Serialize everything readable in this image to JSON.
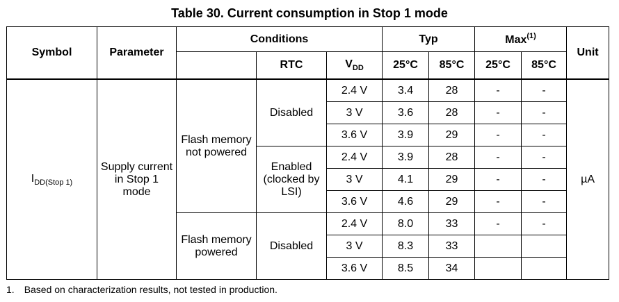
{
  "caption": "Table 30. Current consumption in Stop 1 mode",
  "headers": {
    "symbol": "Symbol",
    "parameter": "Parameter",
    "conditions": "Conditions",
    "typ": "Typ",
    "max": "Max",
    "max_note": "(1)",
    "unit": "Unit",
    "rtc": "RTC",
    "vdd_main": "V",
    "vdd_sub": "DD",
    "t25_typ": "25°C",
    "t85_typ": "85°C",
    "t25_max": "25°C",
    "t85_max": "85°C"
  },
  "symbol": {
    "main": "I",
    "sub": "DD(Stop 1)"
  },
  "parameter": "Supply current in Stop 1 mode",
  "unit": "µA",
  "groups": [
    {
      "condition": "Flash memory not powered",
      "rtc": [
        {
          "label": "Disabled"
        },
        {
          "label": "Enabled (clocked by LSI)"
        }
      ]
    },
    {
      "condition": "Flash memory powered",
      "rtc": [
        {
          "label": "Disabled"
        }
      ]
    }
  ],
  "rows": [
    {
      "vdd": "2.4 V",
      "typ25": "3.4",
      "typ85": "28",
      "max25": "-",
      "max85": "-"
    },
    {
      "vdd": "3 V",
      "typ25": "3.6",
      "typ85": "28",
      "max25": "-",
      "max85": "-"
    },
    {
      "vdd": "3.6 V",
      "typ25": "3.9",
      "typ85": "29",
      "max25": "-",
      "max85": "-"
    },
    {
      "vdd": "2.4 V",
      "typ25": "3.9",
      "typ85": "28",
      "max25": "-",
      "max85": "-"
    },
    {
      "vdd": "3 V",
      "typ25": "4.1",
      "typ85": "29",
      "max25": "-",
      "max85": "-"
    },
    {
      "vdd": "3.6 V",
      "typ25": "4.6",
      "typ85": "29",
      "max25": "-",
      "max85": "-"
    },
    {
      "vdd": "2.4 V",
      "typ25": "8.0",
      "typ85": "33",
      "max25": "-",
      "max85": "-"
    },
    {
      "vdd": "3 V",
      "typ25": "8.3",
      "typ85": "33",
      "max25": "",
      "max85": ""
    },
    {
      "vdd": "3.6 V",
      "typ25": "8.5",
      "typ85": "34",
      "max25": "",
      "max85": ""
    }
  ],
  "footnote": {
    "number": "1.",
    "text": "Based on characterization results, not tested in production."
  }
}
